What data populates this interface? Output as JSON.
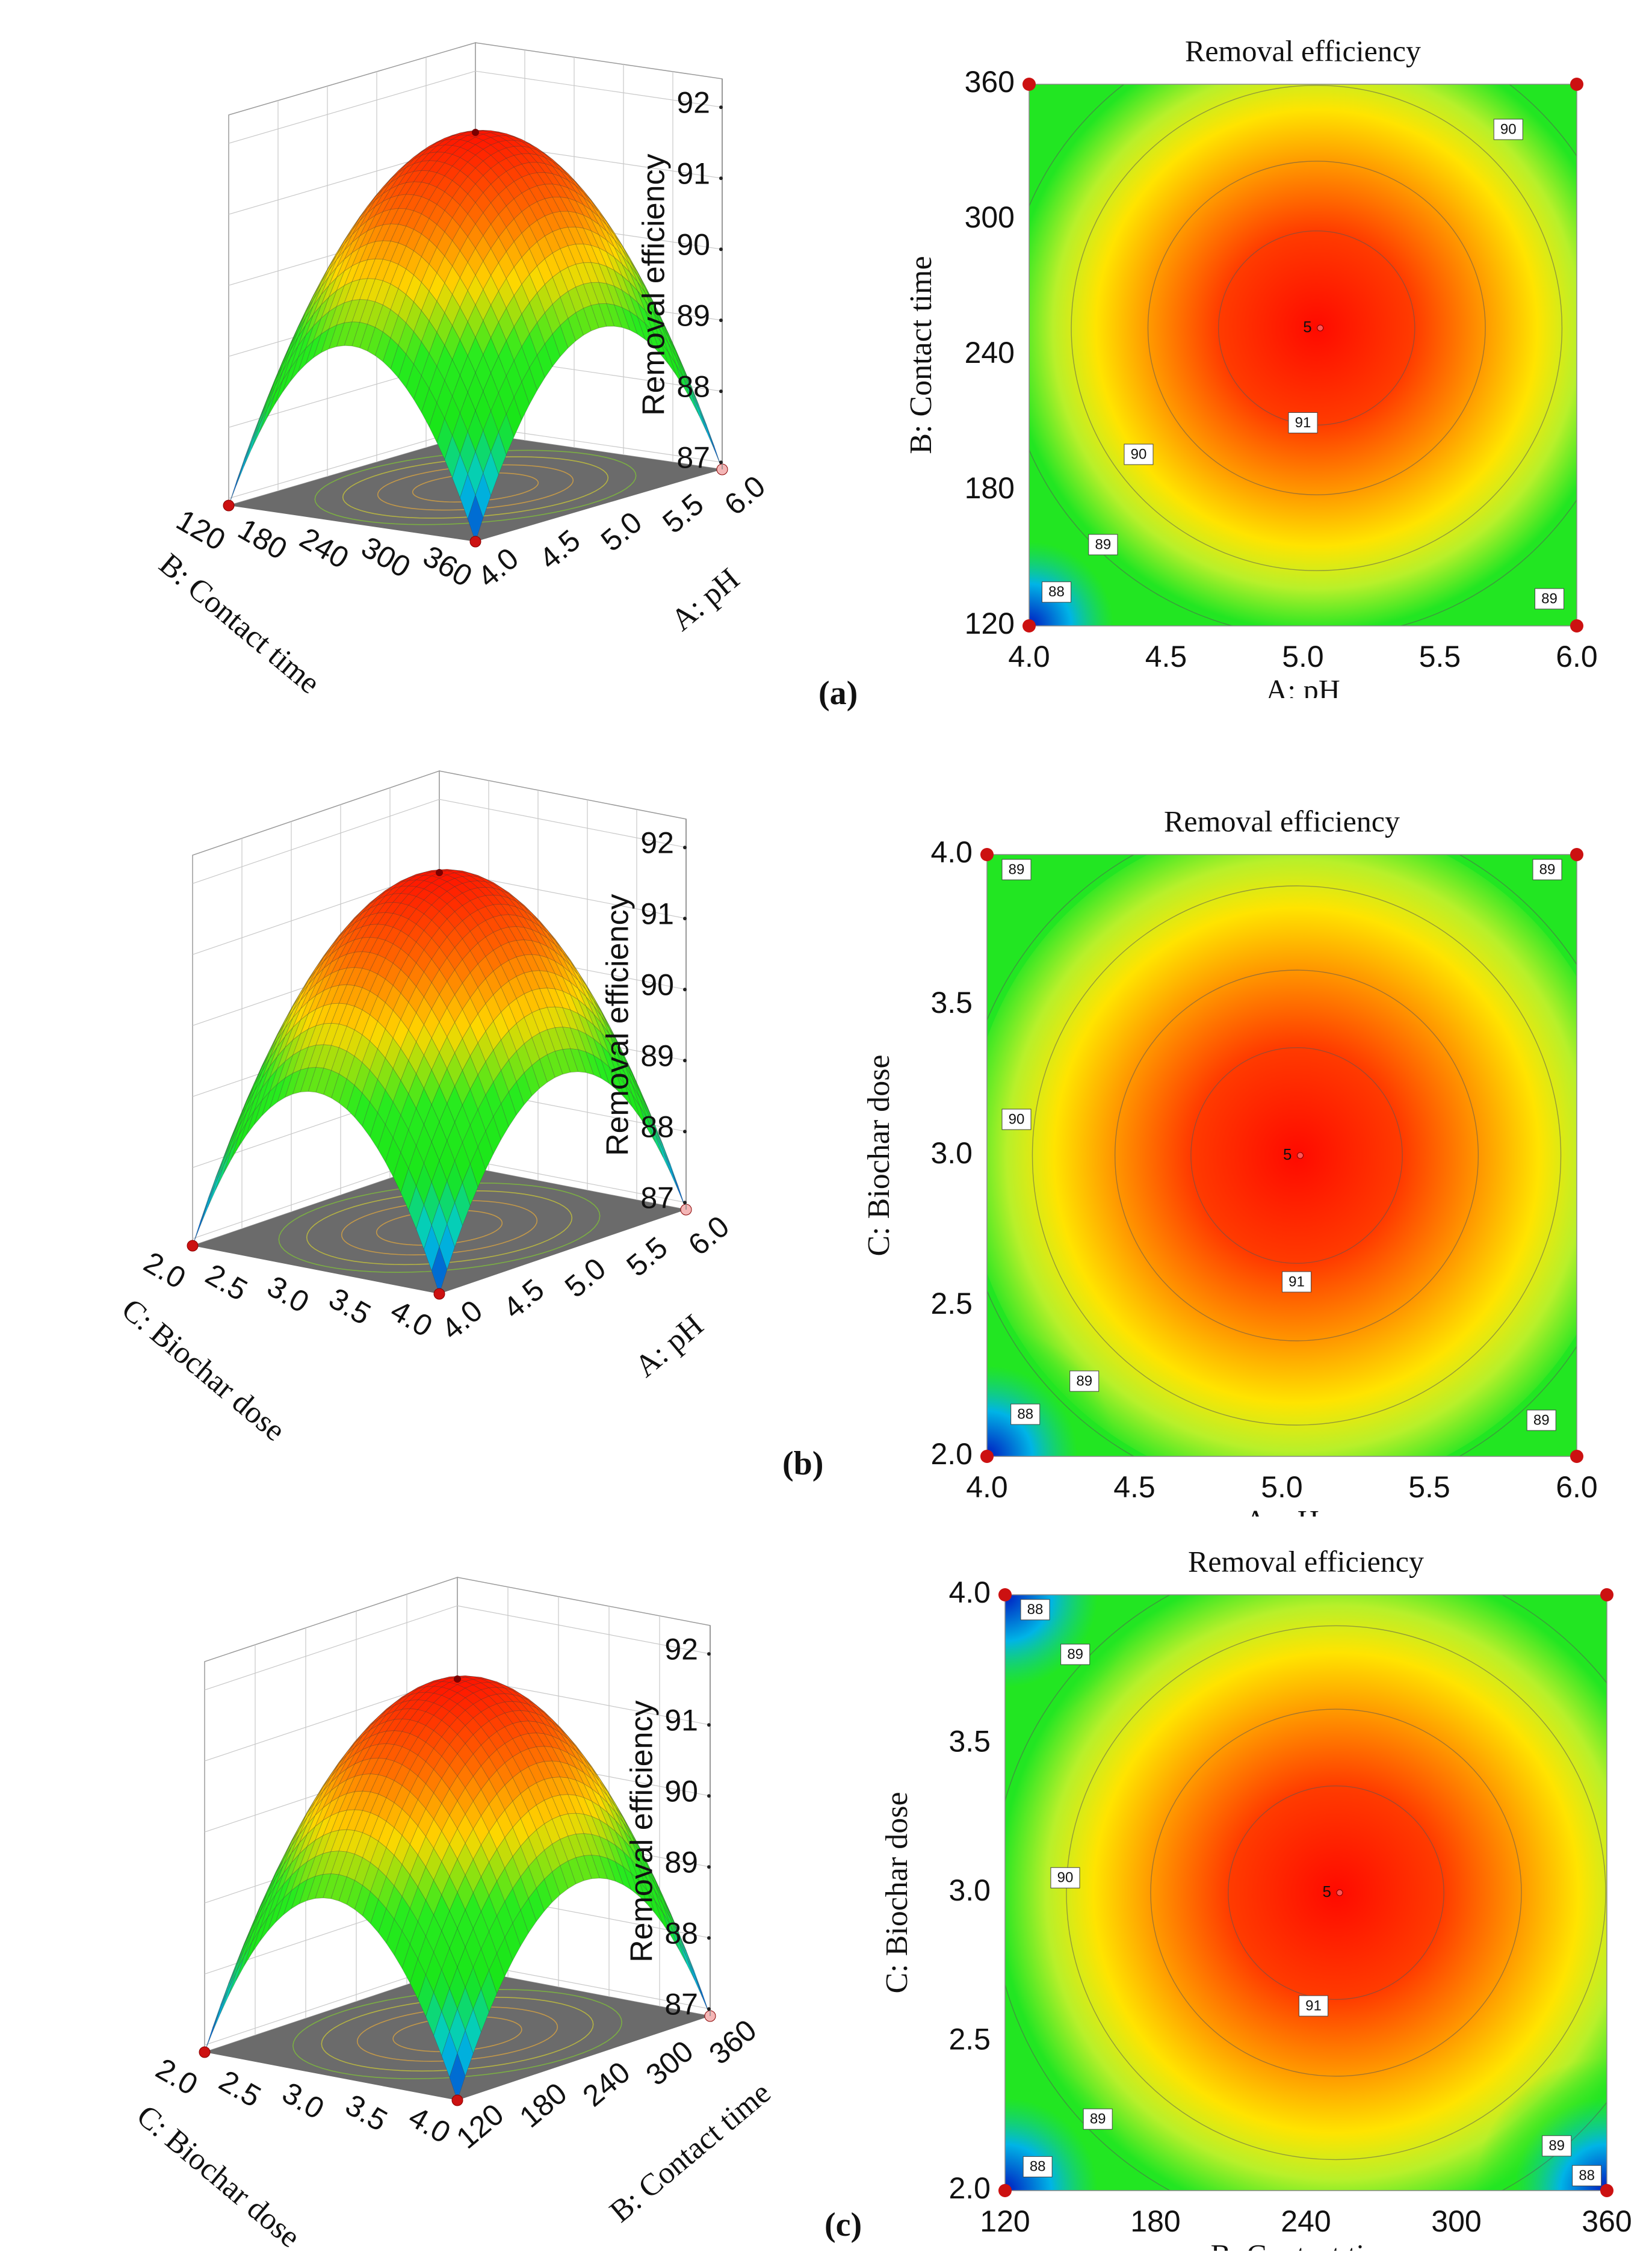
{
  "panel_labels": [
    "(a)",
    "(b)",
    "(c)"
  ],
  "colors": {
    "ridge": "#ff1a00",
    "mid": "#ffd000",
    "plateau": "#19e619",
    "low": "#00c8e0",
    "min": "#0028c8",
    "point": "#cc1111",
    "floor": "#6b6b6b"
  },
  "chart_data": [
    {
      "id": "a-surface",
      "type": "surface",
      "title": "",
      "zlabel": "Removal efficiency",
      "zticks": [
        "87",
        "88",
        "89",
        "90",
        "91",
        "92"
      ],
      "xlabel": "B: Contact time",
      "xticks": [
        "120",
        "180",
        "240",
        "300",
        "360"
      ],
      "ylabel": "A: pH",
      "yticks": [
        "4.0",
        "4.5",
        "5.0",
        "5.5",
        "6.0"
      ],
      "peak": 91.9,
      "corner_min": 86.9
    },
    {
      "id": "a-contour",
      "type": "contour",
      "title": "Removal efficiency",
      "xlabel": "A: pH",
      "xticks": [
        "4.0",
        "4.5",
        "5.0",
        "5.5",
        "6.0"
      ],
      "xlim": [
        4.0,
        6.0
      ],
      "ylabel": "B: Contact time",
      "yticks": [
        "120",
        "180",
        "240",
        "300",
        "360"
      ],
      "ylim": [
        120,
        360
      ],
      "center": [
        5.05,
        252
      ],
      "levels": [
        88,
        89,
        90,
        91
      ],
      "level_labels": [
        {
          "text": "90",
          "x": 5.75,
          "y": 340
        },
        {
          "text": "91",
          "x": 5.0,
          "y": 210
        },
        {
          "text": "90",
          "x": 4.4,
          "y": 196
        },
        {
          "text": "89",
          "x": 4.27,
          "y": 156
        },
        {
          "text": "88",
          "x": 4.1,
          "y": 135
        },
        {
          "text": "89",
          "x": 5.9,
          "y": 132
        }
      ],
      "center_label": "5",
      "design_points": [
        [
          4.0,
          360
        ],
        [
          6.0,
          360
        ],
        [
          4.0,
          120
        ],
        [
          6.0,
          120
        ]
      ]
    },
    {
      "id": "b-surface",
      "type": "surface",
      "title": "",
      "zlabel": "Removal efficiency",
      "zticks": [
        "87",
        "88",
        "89",
        "90",
        "91",
        "92"
      ],
      "xlabel": "C: Biochar dose",
      "xticks": [
        "2.0",
        "2.5",
        "3.0",
        "3.5",
        "4.0"
      ],
      "ylabel": "A: pH",
      "yticks": [
        "4.0",
        "4.5",
        "5.0",
        "5.5",
        "6.0"
      ],
      "peak": 91.9,
      "corner_min": 86.9
    },
    {
      "id": "b-contour",
      "type": "contour",
      "title": "Removal efficiency",
      "xlabel": "A: pH",
      "xticks": [
        "4.0",
        "4.5",
        "5.0",
        "5.5",
        "6.0"
      ],
      "xlim": [
        4.0,
        6.0
      ],
      "ylabel": "C: Biochar dose",
      "yticks": [
        "2.0",
        "2.5",
        "3.0",
        "3.5",
        "4.0"
      ],
      "ylim": [
        2.0,
        4.0
      ],
      "center": [
        5.05,
        3.0
      ],
      "levels": [
        88,
        89,
        90,
        91
      ],
      "level_labels": [
        {
          "text": "89",
          "x": 4.1,
          "y": 3.95
        },
        {
          "text": "89",
          "x": 5.9,
          "y": 3.95
        },
        {
          "text": "90",
          "x": 4.1,
          "y": 3.12
        },
        {
          "text": "91",
          "x": 5.05,
          "y": 2.58
        },
        {
          "text": "89",
          "x": 4.33,
          "y": 2.25
        },
        {
          "text": "88",
          "x": 4.13,
          "y": 2.14
        },
        {
          "text": "89",
          "x": 5.88,
          "y": 2.12
        }
      ],
      "center_label": "5",
      "design_points": [
        [
          4.0,
          4.0
        ],
        [
          6.0,
          4.0
        ],
        [
          4.0,
          2.0
        ],
        [
          6.0,
          2.0
        ]
      ]
    },
    {
      "id": "c-surface",
      "type": "surface",
      "title": "",
      "zlabel": "Removal efficiency",
      "zticks": [
        "87",
        "88",
        "89",
        "90",
        "91",
        "92"
      ],
      "xlabel": "C: Biochar dose",
      "xticks": [
        "2.0",
        "2.5",
        "3.0",
        "3.5",
        "4.0"
      ],
      "ylabel": "B: Contact time",
      "yticks": [
        "120",
        "180",
        "240",
        "300",
        "360"
      ],
      "peak": 91.9,
      "corner_min": 86.9
    },
    {
      "id": "c-contour",
      "type": "contour",
      "title": "Removal efficiency",
      "xlabel": "B: Contact time",
      "xticks": [
        "120",
        "180",
        "240",
        "300",
        "360"
      ],
      "xlim": [
        120,
        360
      ],
      "ylabel": "C: Biochar dose",
      "yticks": [
        "2.0",
        "2.5",
        "3.0",
        "3.5",
        "4.0"
      ],
      "ylim": [
        2.0,
        4.0
      ],
      "center": [
        252,
        3.0
      ],
      "levels": [
        88,
        89,
        90,
        91
      ],
      "level_labels": [
        {
          "text": "88",
          "x": 132,
          "y": 3.95
        },
        {
          "text": "89",
          "x": 148,
          "y": 3.8
        },
        {
          "text": "90",
          "x": 144,
          "y": 3.05
        },
        {
          "text": "91",
          "x": 243,
          "y": 2.62
        },
        {
          "text": "89",
          "x": 157,
          "y": 2.24
        },
        {
          "text": "88",
          "x": 133,
          "y": 2.08
        },
        {
          "text": "89",
          "x": 340,
          "y": 2.15
        },
        {
          "text": "88",
          "x": 352,
          "y": 2.05
        }
      ],
      "center_label": "5",
      "design_points": [
        [
          120,
          4.0
        ],
        [
          360,
          4.0
        ],
        [
          120,
          2.0
        ],
        [
          360,
          2.0
        ]
      ]
    }
  ]
}
